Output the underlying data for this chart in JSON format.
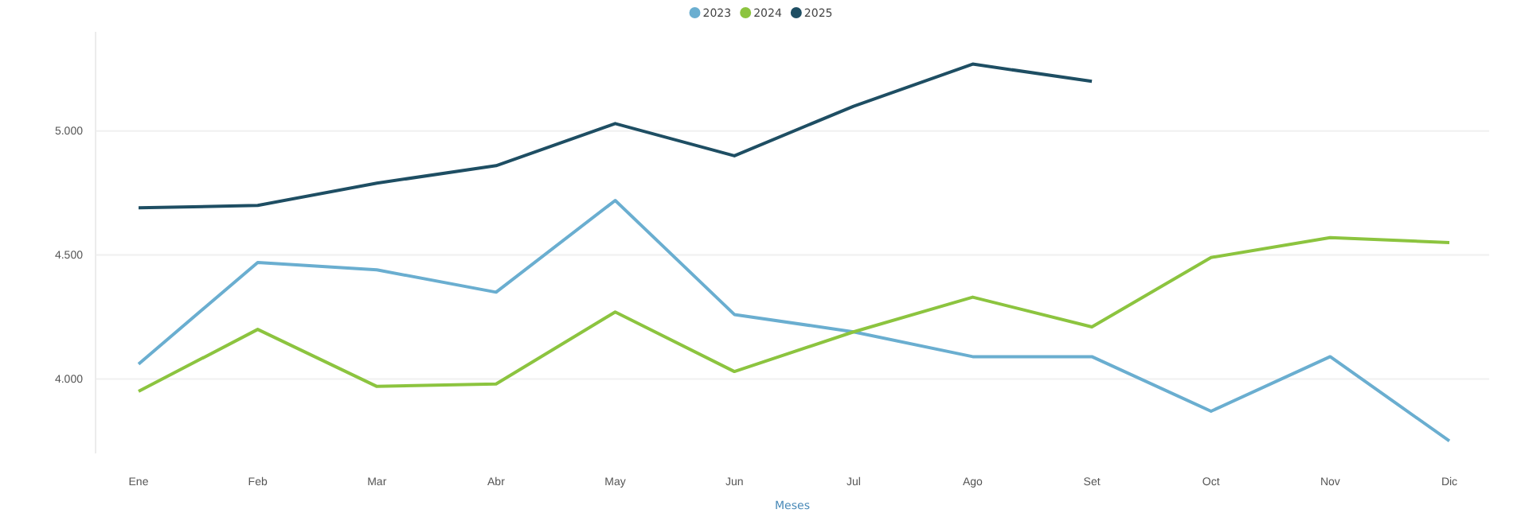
{
  "chart_data": {
    "type": "line",
    "xlabel": "Meses",
    "categories": [
      "Ene",
      "Feb",
      "Mar",
      "Abr",
      "May",
      "Jun",
      "Jul",
      "Ago",
      "Set",
      "Oct",
      "Nov",
      "Dic"
    ],
    "series": [
      {
        "name": "2023",
        "color": "#6aaed0",
        "values": [
          4060,
          4470,
          4440,
          4350,
          4720,
          4260,
          4190,
          4090,
          4090,
          3870,
          4090,
          3750
        ]
      },
      {
        "name": "2024",
        "color": "#8cc43f",
        "values": [
          3950,
          4200,
          3970,
          3980,
          4270,
          4030,
          4190,
          4330,
          4210,
          4490,
          4570,
          4550
        ]
      },
      {
        "name": "2025",
        "color": "#1e4e63",
        "values": [
          4690,
          4700,
          4790,
          4860,
          5030,
          4900,
          5100,
          5270,
          5200,
          null,
          null,
          null
        ]
      }
    ],
    "ylim": [
      3700,
      5400
    ],
    "yticks": [
      {
        "value": 4000,
        "label": "4.000"
      },
      {
        "value": 4500,
        "label": "4.500"
      },
      {
        "value": 5000,
        "label": "5.000"
      }
    ],
    "grid": "y",
    "legend": "top",
    "marker": "none",
    "line_style": "solid"
  }
}
